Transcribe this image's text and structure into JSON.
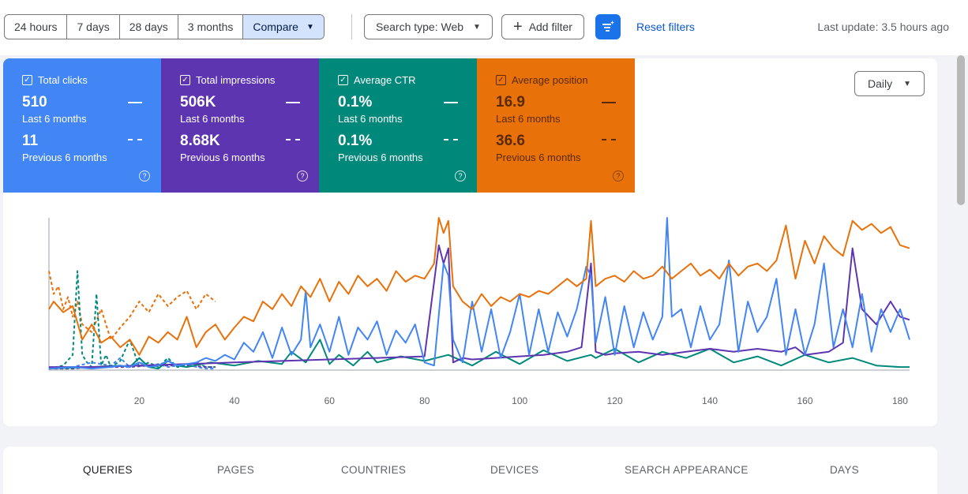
{
  "toolbar": {
    "ranges": [
      "24 hours",
      "7 days",
      "28 days",
      "3 months"
    ],
    "compare_label": "Compare",
    "search_type_label": "Search type: Web",
    "add_filter_label": "Add filter",
    "reset_filters_label": "Reset filters",
    "last_update": "Last update: 3.5 hours ago"
  },
  "metrics": {
    "clicks": {
      "label": "Total clicks",
      "current": "510",
      "current_period": "Last 6 months",
      "previous": "11",
      "previous_period": "Previous 6 months"
    },
    "impressions": {
      "label": "Total impressions",
      "current": "506K",
      "current_period": "Last 6 months",
      "previous": "8.68K",
      "previous_period": "Previous 6 months"
    },
    "ctr": {
      "label": "Average CTR",
      "current": "0.1%",
      "current_period": "Last 6 months",
      "previous": "0.1%",
      "previous_period": "Previous 6 months"
    },
    "position": {
      "label": "Average position",
      "current": "16.9",
      "current_period": "Last 6 months",
      "previous": "36.6",
      "previous_period": "Previous 6 months"
    }
  },
  "granularity": "Daily",
  "colors": {
    "clicks": "#4285f4",
    "impressions": "#5e35b1",
    "ctr": "#00897b",
    "position": "#e8710a"
  },
  "chart_data": {
    "type": "line",
    "x_ticks": [
      20,
      40,
      60,
      80,
      100,
      120,
      140,
      160,
      180
    ],
    "xlim": [
      1,
      182
    ],
    "ylim": [
      0,
      1
    ],
    "grid": false,
    "series": [
      {
        "name": "Total clicks",
        "style": "solid",
        "color": "#4285f4",
        "x": [
          1,
          6,
          10,
          14,
          16,
          18,
          20,
          22,
          24,
          26,
          28,
          30,
          32,
          34,
          36,
          38,
          40,
          42,
          44,
          46,
          48,
          50,
          52,
          54,
          55,
          56,
          58,
          60,
          62,
          64,
          66,
          68,
          70,
          72,
          74,
          76,
          78,
          80,
          82,
          84,
          85,
          86,
          88,
          90,
          92,
          94,
          96,
          98,
          100,
          102,
          104,
          106,
          108,
          110,
          112,
          114,
          115,
          116,
          118,
          120,
          122,
          124,
          126,
          128,
          130,
          131,
          132,
          134,
          136,
          138,
          140,
          142,
          144,
          146,
          148,
          150,
          152,
          154,
          156,
          158,
          160,
          162,
          164,
          166,
          168,
          170,
          172,
          174,
          176,
          178,
          180,
          182
        ],
        "y": [
          0.01,
          0.02,
          0.01,
          0.02,
          0.03,
          0.02,
          0.05,
          0.02,
          0.03,
          0.06,
          0.03,
          0.04,
          0.05,
          0.08,
          0.06,
          0.1,
          0.07,
          0.18,
          0.12,
          0.25,
          0.08,
          0.28,
          0.1,
          0.2,
          0.52,
          0.15,
          0.3,
          0.12,
          0.35,
          0.1,
          0.28,
          0.2,
          0.32,
          0.1,
          0.26,
          0.18,
          0.3,
          0.05,
          0.03,
          0.7,
          0.62,
          0.2,
          0.05,
          0.45,
          0.12,
          0.4,
          0.08,
          0.25,
          0.5,
          0.1,
          0.4,
          0.12,
          0.38,
          0.22,
          0.4,
          0.68,
          0.62,
          0.18,
          0.48,
          0.1,
          0.42,
          0.15,
          0.38,
          0.2,
          0.35,
          1.0,
          0.35,
          0.4,
          0.15,
          0.42,
          0.2,
          0.3,
          0.72,
          0.12,
          0.45,
          0.25,
          0.35,
          0.6,
          0.1,
          0.4,
          0.1,
          0.3,
          0.7,
          0.15,
          0.4,
          0.15,
          0.5,
          0.12,
          0.4,
          0.25,
          0.4,
          0.2
        ]
      },
      {
        "name": "Total impressions",
        "style": "solid",
        "color": "#5e35b1",
        "x": [
          1,
          10,
          20,
          30,
          40,
          50,
          60,
          70,
          80,
          83,
          84,
          85,
          86,
          88,
          90,
          95,
          100,
          105,
          110,
          113,
          115,
          116,
          118,
          120,
          125,
          130,
          135,
          140,
          145,
          150,
          155,
          158,
          160,
          165,
          168,
          170,
          172,
          175,
          178,
          180,
          182
        ],
        "y": [
          0.02,
          0.02,
          0.03,
          0.04,
          0.05,
          0.06,
          0.07,
          0.08,
          0.09,
          0.82,
          0.7,
          0.8,
          0.05,
          0.08,
          0.07,
          0.08,
          0.09,
          0.1,
          0.12,
          0.15,
          0.7,
          0.12,
          0.1,
          0.11,
          0.12,
          0.1,
          0.12,
          0.14,
          0.12,
          0.14,
          0.12,
          0.15,
          0.1,
          0.12,
          0.18,
          0.8,
          0.4,
          0.3,
          0.45,
          0.35,
          0.33
        ]
      },
      {
        "name": "Average CTR",
        "style": "solid",
        "color": "#00897b",
        "x": [
          1,
          10,
          16,
          18,
          20,
          22,
          24,
          26,
          28,
          30,
          35,
          40,
          45,
          50,
          52,
          55,
          58,
          60,
          62,
          65,
          68,
          70,
          75,
          80,
          85,
          90,
          95,
          100,
          105,
          110,
          115,
          116,
          120,
          125,
          130,
          135,
          140,
          145,
          150,
          155,
          160,
          165,
          170,
          175,
          180,
          182
        ],
        "y": [
          0.01,
          0.02,
          0.03,
          0.02,
          0.08,
          0.02,
          0.01,
          0.06,
          0.03,
          0.02,
          0.05,
          0.03,
          0.06,
          0.04,
          0.12,
          0.05,
          0.2,
          0.04,
          0.1,
          0.03,
          0.12,
          0.05,
          0.09,
          0.06,
          0.1,
          0.03,
          0.12,
          0.04,
          0.13,
          0.06,
          0.1,
          0.08,
          0.14,
          0.05,
          0.12,
          0.08,
          0.14,
          0.05,
          0.09,
          0.03,
          0.1,
          0.05,
          0.08,
          0.03,
          0.02,
          0.02
        ]
      },
      {
        "name": "Average position",
        "style": "solid",
        "color": "#e8710a",
        "x": [
          1,
          2,
          4,
          6,
          8,
          10,
          12,
          14,
          16,
          18,
          20,
          22,
          24,
          26,
          28,
          30,
          32,
          34,
          36,
          38,
          40,
          42,
          44,
          46,
          48,
          50,
          52,
          54,
          56,
          58,
          60,
          62,
          64,
          66,
          68,
          70,
          72,
          74,
          76,
          78,
          80,
          82,
          83,
          84,
          85,
          86,
          88,
          90,
          92,
          94,
          96,
          98,
          100,
          102,
          104,
          106,
          108,
          110,
          112,
          114,
          115,
          116,
          118,
          120,
          122,
          124,
          126,
          128,
          130,
          132,
          134,
          136,
          138,
          140,
          142,
          144,
          146,
          148,
          150,
          152,
          154,
          156,
          158,
          160,
          162,
          164,
          166,
          168,
          170,
          172,
          174,
          176,
          178,
          180,
          182
        ],
        "y": [
          0.4,
          0.45,
          0.38,
          0.42,
          0.2,
          0.3,
          0.18,
          0.22,
          0.15,
          0.2,
          0.1,
          0.22,
          0.18,
          0.25,
          0.2,
          0.35,
          0.15,
          0.25,
          0.3,
          0.2,
          0.28,
          0.35,
          0.32,
          0.45,
          0.4,
          0.5,
          0.42,
          0.55,
          0.48,
          0.6,
          0.45,
          0.58,
          0.5,
          0.62,
          0.55,
          0.6,
          0.52,
          0.65,
          0.58,
          0.62,
          0.6,
          0.7,
          1.0,
          0.9,
          0.98,
          0.55,
          0.45,
          0.4,
          0.5,
          0.42,
          0.48,
          0.45,
          0.5,
          0.48,
          0.52,
          0.5,
          0.55,
          0.6,
          0.55,
          0.6,
          0.98,
          0.55,
          0.6,
          0.62,
          0.58,
          0.65,
          0.6,
          0.62,
          0.68,
          0.6,
          0.65,
          0.7,
          0.62,
          0.66,
          0.6,
          0.7,
          0.62,
          0.68,
          0.7,
          0.65,
          0.72,
          0.95,
          0.6,
          0.85,
          0.7,
          0.88,
          0.8,
          0.75,
          0.98,
          0.92,
          0.96,
          0.9,
          0.94,
          0.82,
          0.8
        ]
      },
      {
        "name": "Total clicks (previous)",
        "style": "dashed",
        "color": "#4285f4",
        "x": [
          1,
          6,
          10,
          14,
          16,
          18,
          20,
          22,
          24,
          26,
          28,
          30,
          32,
          34,
          36
        ],
        "y": [
          0.01,
          0.02,
          0.05,
          0.03,
          0.08,
          0.02,
          0.05,
          0.03,
          0.04,
          0.02,
          0.03,
          0.04,
          0.02,
          0.01,
          0.01
        ]
      },
      {
        "name": "Total impressions (previous)",
        "style": "dashed",
        "color": "#5e35b1",
        "x": [
          1,
          6,
          10,
          14,
          18,
          22,
          26,
          30,
          34,
          36
        ],
        "y": [
          0.01,
          0.01,
          0.02,
          0.02,
          0.02,
          0.03,
          0.03,
          0.03,
          0.02,
          0.02
        ]
      },
      {
        "name": "Average CTR (previous)",
        "style": "dashed",
        "color": "#00897b",
        "x": [
          1,
          4,
          6,
          7,
          8,
          9,
          10,
          11,
          12,
          13,
          14,
          16,
          18,
          20,
          22,
          24,
          26,
          28,
          30,
          32,
          34,
          36
        ],
        "y": [
          0.01,
          0.03,
          0.1,
          0.65,
          0.1,
          0.05,
          0.02,
          0.5,
          0.03,
          0.1,
          0.02,
          0.06,
          0.2,
          0.02,
          0.05,
          0.02,
          0.08,
          0.02,
          0.03,
          0.05,
          0.02,
          0.02
        ]
      },
      {
        "name": "Average position (previous)",
        "style": "dashed",
        "color": "#e8710a",
        "x": [
          1,
          2,
          3,
          4,
          5,
          6,
          7,
          8,
          10,
          12,
          14,
          16,
          18,
          20,
          22,
          24,
          26,
          28,
          30,
          32,
          34,
          36
        ],
        "y": [
          0.65,
          0.5,
          0.55,
          0.4,
          0.48,
          0.35,
          0.45,
          0.3,
          0.25,
          0.4,
          0.2,
          0.28,
          0.35,
          0.45,
          0.38,
          0.5,
          0.42,
          0.48,
          0.52,
          0.4,
          0.5,
          0.45
        ]
      }
    ]
  },
  "tabs": [
    "QUERIES",
    "PAGES",
    "COUNTRIES",
    "DEVICES",
    "SEARCH APPEARANCE",
    "DAYS"
  ]
}
